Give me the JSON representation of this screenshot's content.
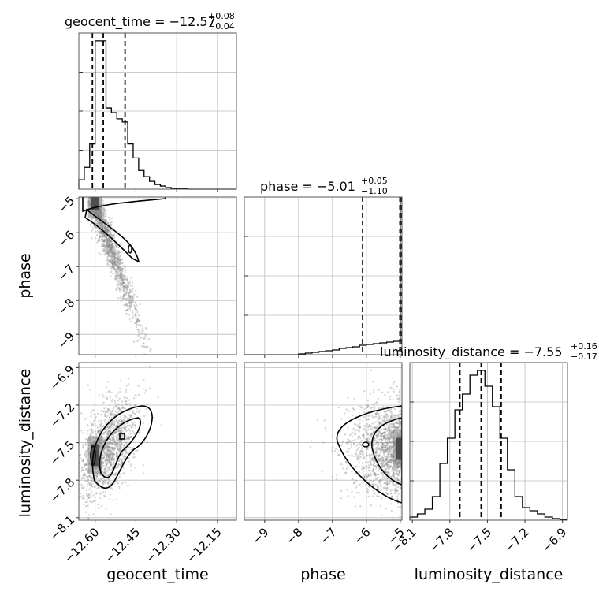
{
  "chart_data": {
    "type": "corner",
    "parameters": [
      "geocent_time",
      "phase",
      "luminosity_distance"
    ],
    "axis_labels": {
      "geocent_time": "geocent_time",
      "phase": "phase",
      "luminosity_distance": "luminosity_distance"
    },
    "ranges": {
      "geocent_time": [
        -12.66,
        -12.08
      ],
      "phase": [
        -9.6,
        -4.95
      ],
      "luminosity_distance": [
        -8.12,
        -6.86
      ]
    },
    "ticks": {
      "geocent_time": [
        -12.6,
        -12.45,
        -12.3,
        -12.15
      ],
      "geocent_time_labels": [
        "−12.60",
        "−12.45",
        "−12.30",
        "−12.15"
      ],
      "phase": [
        -9,
        -8,
        -7,
        -6,
        -5
      ],
      "phase_labels": [
        "−9",
        "−8",
        "−7",
        "−6",
        "−5"
      ],
      "luminosity_distance": [
        -8.1,
        -7.8,
        -7.5,
        -7.2,
        -6.9
      ],
      "luminosity_distance_labels": [
        "−8.1",
        "−7.8",
        "−7.5",
        "−7.2",
        "−6.9"
      ]
    },
    "summaries": {
      "geocent_time": {
        "label": "geocent_time = −12.57",
        "median": -12.57,
        "plus": "+0.08",
        "minus": "−0.04",
        "quantiles": [
          -12.61,
          -12.57,
          -12.49
        ]
      },
      "phase": {
        "label": "phase = −5.01",
        "median": -5.01,
        "plus": "+0.05",
        "minus": "−1.10",
        "quantiles": [
          -6.11,
          -5.01,
          -4.96
        ]
      },
      "luminosity_distance": {
        "label": "luminosity_distance = −7.55",
        "median": -7.55,
        "plus": "+0.16",
        "minus": "−0.17",
        "quantiles": [
          -7.72,
          -7.55,
          -7.39
        ]
      }
    },
    "histograms": {
      "geocent_time": {
        "edges": [
          -12.66,
          -12.64,
          -12.62,
          -12.6,
          -12.58,
          -12.56,
          -12.54,
          -12.52,
          -12.5,
          -12.48,
          -12.46,
          -12.44,
          -12.42,
          -12.4,
          -12.38,
          -12.36,
          -12.34,
          -12.32,
          -12.3,
          -12.28,
          -12.26,
          -12.24,
          -12.22,
          -12.2,
          -12.18,
          -12.16,
          -12.14,
          -12.12,
          -12.1,
          -12.08
        ],
        "counts": [
          0.06,
          0.14,
          0.29,
          0.95,
          0.95,
          0.52,
          0.49,
          0.45,
          0.43,
          0.29,
          0.2,
          0.12,
          0.08,
          0.05,
          0.03,
          0.02,
          0.01,
          0.005,
          0.003,
          0.002,
          0,
          0,
          0,
          0,
          0,
          0,
          0,
          0,
          0
        ]
      },
      "phase": {
        "edges": [
          -9.6,
          -9.4,
          -9.2,
          -9.0,
          -8.8,
          -8.6,
          -8.4,
          -8.2,
          -8.0,
          -7.8,
          -7.6,
          -7.4,
          -7.2,
          -7.0,
          -6.8,
          -6.6,
          -6.4,
          -6.2,
          -6.0,
          -5.8,
          -5.6,
          -5.4,
          -5.2,
          -5.0,
          -4.95
        ],
        "counts": [
          0,
          0,
          0,
          0,
          0,
          0,
          0,
          0,
          0.005,
          0.01,
          0.015,
          0.02,
          0.025,
          0.03,
          0.04,
          0.045,
          0.05,
          0.06,
          0.065,
          0.07,
          0.075,
          0.08,
          0.085,
          0.99
        ]
      },
      "luminosity_distance": {
        "edges": [
          -8.12,
          -8.06,
          -8.0,
          -7.94,
          -7.88,
          -7.82,
          -7.76,
          -7.7,
          -7.64,
          -7.58,
          -7.52,
          -7.46,
          -7.4,
          -7.34,
          -7.28,
          -7.22,
          -7.16,
          -7.1,
          -7.04,
          -6.98,
          -6.92,
          -6.86
        ],
        "counts": [
          0.02,
          0.04,
          0.07,
          0.15,
          0.36,
          0.52,
          0.7,
          0.8,
          0.92,
          0.95,
          0.85,
          0.72,
          0.52,
          0.32,
          0.15,
          0.08,
          0.06,
          0.04,
          0.02,
          0.01,
          0.005
        ]
      }
    },
    "density_panels": [
      {
        "x": "geocent_time",
        "y": "phase",
        "center": [
          -12.6,
          -5.0
        ],
        "trend": "negative",
        "contour_levels": 3
      },
      {
        "x": "geocent_time",
        "y": "luminosity_distance",
        "center": [
          -12.6,
          -7.6
        ],
        "trend": "positive",
        "contour_levels": 3
      },
      {
        "x": "phase",
        "y": "luminosity_distance",
        "center": [
          -5.0,
          -7.55
        ],
        "trend": "none",
        "contour_levels": 3
      }
    ],
    "grid": true,
    "line_color": "#000000",
    "scatter_color": "#888888"
  }
}
